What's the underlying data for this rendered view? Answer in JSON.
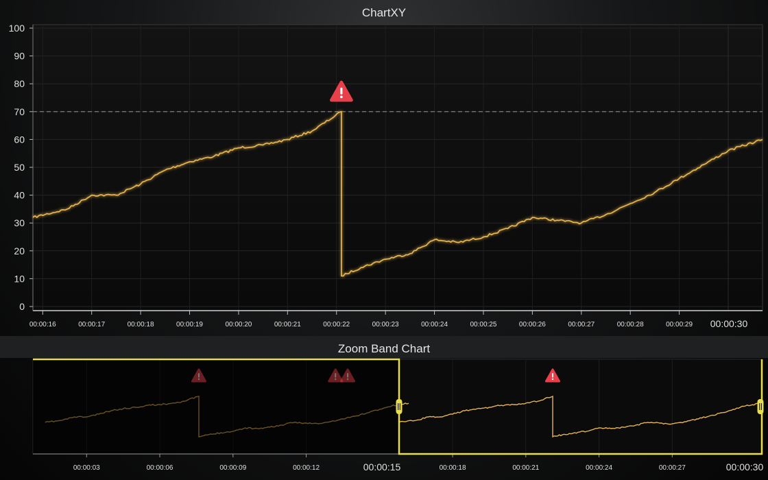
{
  "main_chart": {
    "title": "ChartXY",
    "threshold": 70,
    "alert_icon": "warning-triangle-icon",
    "alert_color": "#e8404a",
    "line_color": "#e8b550",
    "y_ticks": [
      "0",
      "10",
      "20",
      "30",
      "40",
      "50",
      "60",
      "70",
      "80",
      "90",
      "100"
    ],
    "x_ticks": [
      "00:00:16",
      "00:00:17",
      "00:00:18",
      "00:00:19",
      "00:00:20",
      "00:00:21",
      "00:00:22",
      "00:00:23",
      "00:00:24",
      "00:00:25",
      "00:00:26",
      "00:00:27",
      "00:00:28",
      "00:00:29"
    ],
    "x_major_label": "00:00:30"
  },
  "zoom_band": {
    "title": "Zoom Band Chart",
    "x_ticks": [
      "00:00:03",
      "00:00:06",
      "00:00:09",
      "00:00:12",
      "00:00:18",
      "00:00:21",
      "00:00:24",
      "00:00:27"
    ],
    "x_major_labels": [
      "00:00:15",
      "00:00:30"
    ],
    "band_color": "#e8dd4c",
    "handle_icon": "drag-handle-icon"
  },
  "chart_data": {
    "type": "line",
    "title": "ChartXY",
    "xlabel": "",
    "ylabel": "",
    "ylim": [
      0,
      100
    ],
    "xlim": [
      "00:00:15.8",
      "00:00:30.7"
    ],
    "threshold": 70,
    "x": [
      "00:00:15.8",
      "00:00:16.5",
      "00:00:17",
      "00:00:17.5",
      "00:00:18",
      "00:00:18.5",
      "00:00:19",
      "00:00:19.5",
      "00:00:20",
      "00:00:20.5",
      "00:00:21",
      "00:00:21.5",
      "00:00:22.1",
      "00:00:22.1",
      "00:00:22.5",
      "00:00:23",
      "00:00:23.5",
      "00:00:24",
      "00:00:24.5",
      "00:00:25",
      "00:00:25.5",
      "00:00:26",
      "00:00:26.5",
      "00:00:27",
      "00:00:27.5",
      "00:00:28",
      "00:00:28.5",
      "00:00:29",
      "00:00:29.5",
      "00:00:30",
      "00:00:30.7"
    ],
    "y": [
      32,
      35,
      40,
      40,
      44,
      49,
      52,
      54,
      57,
      58,
      60,
      63,
      70,
      11,
      14,
      17,
      19,
      24,
      23,
      25,
      28,
      32,
      31,
      30,
      33,
      37,
      41,
      46,
      51,
      56,
      60
    ],
    "alerts": [
      "00:00:22.1"
    ]
  }
}
